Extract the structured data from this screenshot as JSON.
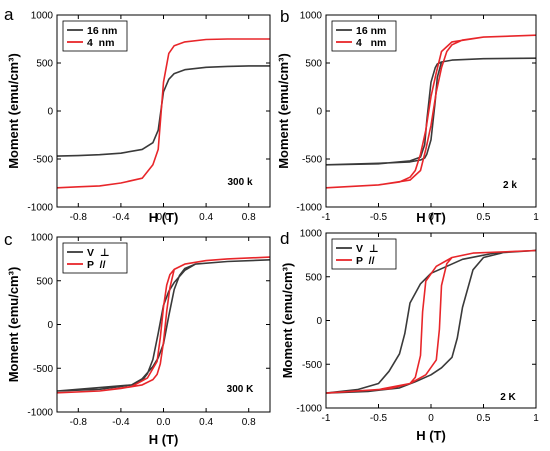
{
  "colors": {
    "dark": "#3a3a3a",
    "red": "#e8262a",
    "frame": "#000000"
  },
  "chart_data": [
    {
      "type": "line",
      "panel_label": "a",
      "xlabel": "H (T)",
      "ylabel": "Moment (emu/cm³)",
      "xlim": [
        -1.0,
        1.0
      ],
      "ylim": [
        -1000,
        1000
      ],
      "xticks": [
        -0.8,
        -0.4,
        0.0,
        0.4,
        0.8
      ],
      "xtick_labels": [
        "-0.8",
        "-0.4",
        "0.0",
        "0.4",
        "0.8"
      ],
      "yticks": [
        -1000,
        -500,
        0,
        500,
        1000
      ],
      "ytick_labels": [
        "-1000",
        "-500",
        "0",
        "500",
        "1000"
      ],
      "legend": [
        "16 nm",
        "4  nm"
      ],
      "legend_position": "top-left",
      "annotation": "300 k",
      "series": [
        {
          "name": "16 nm",
          "color": "#3a3a3a",
          "x": [
            -1.0,
            -0.8,
            -0.6,
            -0.4,
            -0.2,
            -0.1,
            -0.05,
            0.0,
            0.05,
            0.1,
            0.2,
            0.4,
            0.6,
            0.8,
            1.0
          ],
          "y": [
            -470,
            -465,
            -455,
            -440,
            -400,
            -330,
            -200,
            200,
            330,
            390,
            430,
            455,
            465,
            470,
            470
          ]
        },
        {
          "name": "4  nm",
          "color": "#e8262a",
          "x": [
            -1.0,
            -0.8,
            -0.6,
            -0.4,
            -0.2,
            -0.1,
            -0.05,
            0.0,
            0.05,
            0.1,
            0.2,
            0.4,
            0.6,
            0.8,
            1.0
          ],
          "y": [
            -800,
            -790,
            -780,
            -750,
            -700,
            -560,
            -400,
            300,
            600,
            680,
            720,
            745,
            750,
            750,
            750
          ]
        }
      ]
    },
    {
      "type": "line",
      "panel_label": "b",
      "xlabel": "H (T)",
      "ylabel": "Moment (emu/cm³)",
      "xlim": [
        -1.0,
        1.0
      ],
      "ylim": [
        -1000,
        1000
      ],
      "xticks": [
        -1.0,
        -0.5,
        0.0,
        0.5,
        1.0
      ],
      "xtick_labels": [
        "-1",
        "-0.5",
        "0",
        "0.5",
        "1"
      ],
      "yticks": [
        -1000,
        -500,
        0,
        500,
        1000
      ],
      "ytick_labels": [
        "-1000",
        "-500",
        "0",
        "500",
        "1000"
      ],
      "legend": [
        "16 nm",
        "4   nm"
      ],
      "legend_position": "top-left",
      "annotation": "2 k",
      "series": [
        {
          "name": "16 nm",
          "color": "#3a3a3a",
          "x": [
            -1.0,
            -0.5,
            -0.2,
            -0.1,
            -0.06,
            -0.04,
            0.0,
            0.04,
            0.06,
            0.1,
            0.2,
            0.5,
            1.0,
            1.0,
            0.5,
            0.2,
            0.1,
            0.06,
            0.04,
            0.0,
            -0.04,
            -0.06,
            -0.1,
            -0.2,
            -0.5,
            -1.0
          ],
          "y": [
            -560,
            -550,
            -520,
            -480,
            -350,
            -100,
            300,
            450,
            490,
            510,
            530,
            545,
            550,
            550,
            545,
            530,
            510,
            350,
            100,
            -300,
            -450,
            -490,
            -510,
            -530,
            -545,
            -560
          ]
        },
        {
          "name": "4   nm",
          "color": "#e8262a",
          "x": [
            -1.0,
            -0.5,
            -0.2,
            -0.1,
            -0.05,
            0.0,
            0.05,
            0.1,
            0.15,
            0.2,
            0.3,
            0.5,
            1.0,
            1.0,
            0.5,
            0.2,
            0.1,
            0.05,
            0.0,
            -0.05,
            -0.1,
            -0.15,
            -0.2,
            -0.3,
            -0.5,
            -1.0
          ],
          "y": [
            -800,
            -770,
            -720,
            -620,
            -400,
            -150,
            200,
            450,
            620,
            690,
            740,
            770,
            790,
            790,
            770,
            720,
            620,
            400,
            150,
            -200,
            -450,
            -620,
            -690,
            -740,
            -770,
            -800
          ]
        }
      ]
    },
    {
      "type": "line",
      "panel_label": "c",
      "xlabel": "H (T)",
      "ylabel": "Moment (emu/cm³)",
      "xlim": [
        -1.0,
        1.0
      ],
      "ylim": [
        -1000,
        1000
      ],
      "xticks": [
        -0.8,
        -0.4,
        0.0,
        0.4,
        0.8
      ],
      "xtick_labels": [
        "-0.8",
        "-0.4",
        "0.0",
        "0.4",
        "0.8"
      ],
      "yticks": [
        -1000,
        -500,
        0,
        500,
        1000
      ],
      "ytick_labels": [
        "-1000",
        "-500",
        "0",
        "500",
        "1000"
      ],
      "legend": [
        "V  ⊥",
        "P  //"
      ],
      "legend_position": "top-left",
      "annotation": "300 K",
      "series": [
        {
          "name": "V  ⊥",
          "color": "#3a3a3a",
          "x": [
            -1.0,
            -0.6,
            -0.3,
            -0.2,
            -0.1,
            -0.05,
            0.0,
            0.05,
            0.1,
            0.15,
            0.2,
            0.3,
            0.6,
            1.0,
            1.0,
            0.6,
            0.3,
            0.2,
            0.1,
            0.05,
            0.0,
            -0.05,
            -0.1,
            -0.15,
            -0.2,
            -0.3,
            -0.6,
            -1.0
          ],
          "y": [
            -760,
            -740,
            -690,
            -620,
            -480,
            -380,
            -220,
            100,
            400,
            560,
            640,
            690,
            720,
            740,
            740,
            720,
            690,
            620,
            480,
            380,
            220,
            -100,
            -400,
            -560,
            -640,
            -690,
            -720,
            -760
          ]
        },
        {
          "name": "P  //",
          "color": "#e8262a",
          "x": [
            -1.0,
            -0.6,
            -0.3,
            -0.15,
            -0.06,
            -0.03,
            0.0,
            0.03,
            0.06,
            0.1,
            0.2,
            0.4,
            0.6,
            1.0,
            1.0,
            0.6,
            0.4,
            0.2,
            0.1,
            0.06,
            0.03,
            0.0,
            -0.03,
            -0.06,
            -0.1,
            -0.2,
            -0.4,
            -0.6,
            -1.0
          ],
          "y": [
            -780,
            -760,
            -710,
            -610,
            -420,
            -150,
            200,
            450,
            570,
            630,
            690,
            730,
            750,
            770,
            770,
            750,
            730,
            690,
            630,
            420,
            150,
            -200,
            -450,
            -570,
            -630,
            -690,
            -730,
            -760,
            -780
          ]
        }
      ]
    },
    {
      "type": "line",
      "panel_label": "d",
      "xlabel": "H (T)",
      "ylabel": "Moment (emu/cm³)",
      "xlim": [
        -1.0,
        1.0
      ],
      "ylim": [
        -1000,
        1000
      ],
      "xticks": [
        -1.0,
        -0.5,
        0.0,
        0.5,
        1.0
      ],
      "xtick_labels": [
        "-1",
        "-0.5",
        "0",
        "0.5",
        "1"
      ],
      "yticks": [
        -1000,
        -500,
        0,
        500,
        1000
      ],
      "ytick_labels": [
        "-1000",
        "-500",
        "0",
        "500",
        "1000"
      ],
      "legend": [
        "V  ⊥",
        "P  //"
      ],
      "legend_position": "top-left",
      "annotation": "2 K",
      "series": [
        {
          "name": "V  ⊥",
          "color": "#3a3a3a",
          "x": [
            -1.0,
            -0.6,
            -0.3,
            -0.15,
            0.0,
            0.1,
            0.2,
            0.25,
            0.3,
            0.4,
            0.5,
            0.7,
            1.0,
            1.0,
            0.6,
            0.3,
            0.15,
            0.0,
            -0.1,
            -0.2,
            -0.25,
            -0.3,
            -0.4,
            -0.5,
            -0.7,
            -1.0
          ],
          "y": [
            -830,
            -810,
            -770,
            -700,
            -620,
            -540,
            -420,
            -200,
            150,
            580,
            720,
            780,
            800,
            800,
            770,
            700,
            620,
            540,
            420,
            200,
            -150,
            -380,
            -580,
            -720,
            -790,
            -830
          ]
        },
        {
          "name": "P  //",
          "color": "#e8262a",
          "x": [
            -1.0,
            -0.5,
            -0.2,
            -0.05,
            0.05,
            0.08,
            0.1,
            0.15,
            0.2,
            0.4,
            1.0,
            1.0,
            0.4,
            0.2,
            0.05,
            -0.05,
            -0.08,
            -0.1,
            -0.15,
            -0.2,
            -0.4,
            -1.0
          ],
          "y": [
            -830,
            -790,
            -720,
            -620,
            -450,
            -100,
            400,
            650,
            720,
            770,
            800,
            800,
            770,
            720,
            620,
            450,
            100,
            -400,
            -650,
            -720,
            -780,
            -830
          ]
        }
      ]
    }
  ]
}
